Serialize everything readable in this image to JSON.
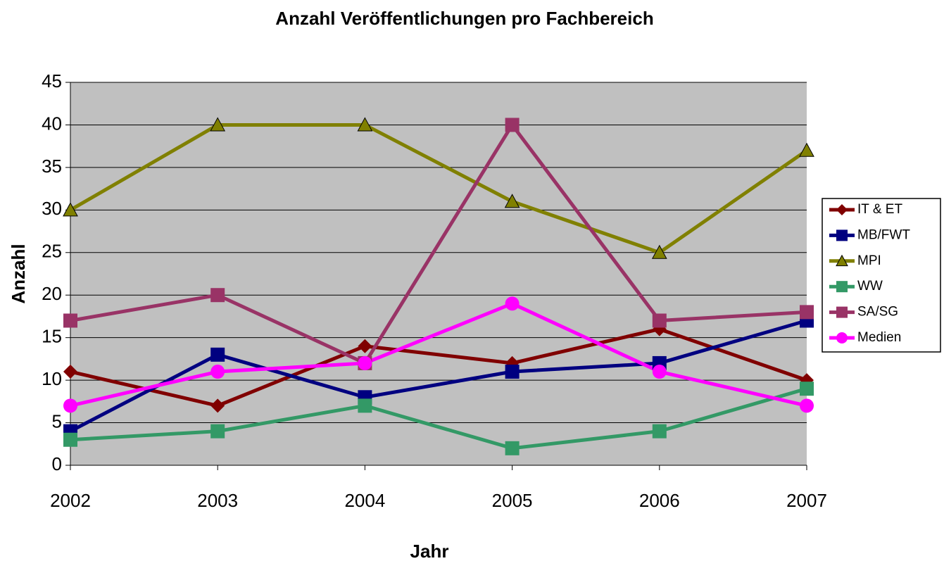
{
  "chart_data": {
    "type": "line",
    "title": "Anzahl Veröffentlichungen pro Fachbereich",
    "x_label": "Jahr",
    "y_label": "Anzahl",
    "categories": [
      "2002",
      "2003",
      "2004",
      "2005",
      "2006",
      "2007"
    ],
    "series": [
      {
        "name": "IT & ET",
        "color": "#800000",
        "marker": "diamond",
        "values": [
          11,
          7,
          14,
          12,
          16,
          10
        ]
      },
      {
        "name": "MB/FWT",
        "color": "#000080",
        "marker": "square",
        "values": [
          4,
          13,
          8,
          11,
          12,
          17
        ]
      },
      {
        "name": "MPI",
        "color": "#808000",
        "marker": "triangle",
        "values": [
          30,
          40,
          40,
          31,
          25,
          37
        ]
      },
      {
        "name": "WW",
        "color": "#339966",
        "marker": "square",
        "values": [
          3,
          4,
          7,
          2,
          4,
          9
        ]
      },
      {
        "name": "SA/SG",
        "color": "#993366",
        "marker": "square",
        "values": [
          17,
          20,
          12,
          40,
          17,
          18
        ]
      },
      {
        "name": "Medien",
        "color": "#ff00ff",
        "marker": "circle",
        "values": [
          7,
          11,
          12,
          19,
          11,
          7
        ]
      }
    ],
    "ylim": [
      0,
      45
    ],
    "yticks": [
      0,
      5,
      10,
      15,
      20,
      25,
      30,
      35,
      40,
      45
    ],
    "grid": true,
    "legend": "right"
  }
}
